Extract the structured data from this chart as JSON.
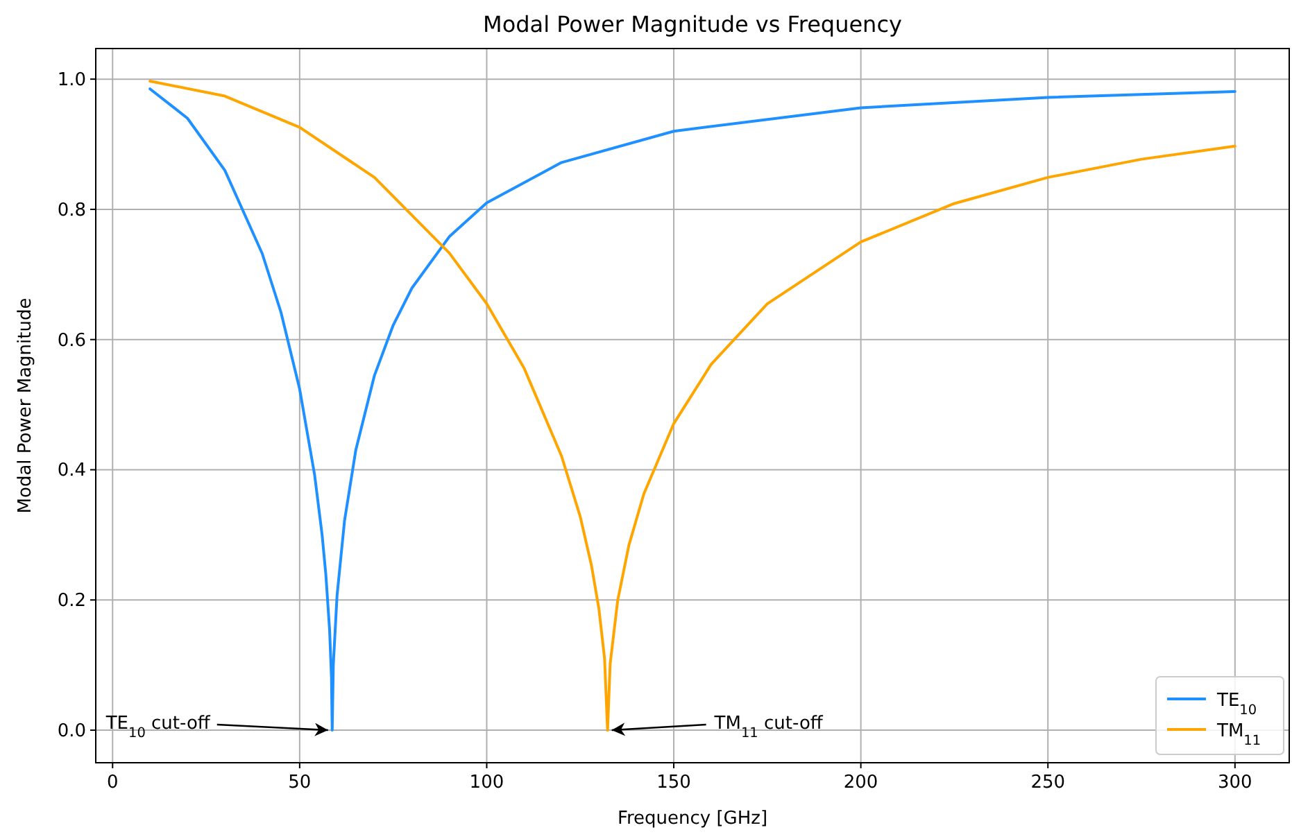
{
  "chart_data": {
    "type": "line",
    "title": "Modal Power Magnitude vs Frequency",
    "xlabel": "Frequency [GHz]",
    "ylabel": "Modal Power Magnitude",
    "xlim": [
      -4.5,
      314.5
    ],
    "ylim": [
      -0.05,
      1.047
    ],
    "xticks": [
      0,
      50,
      100,
      150,
      200,
      250,
      300
    ],
    "yticks": [
      {
        "value": 0,
        "label": "0.0"
      },
      {
        "value": 0.2,
        "label": "0.2"
      },
      {
        "value": 0.4,
        "label": "0.4"
      },
      {
        "value": 0.6,
        "label": "0.6"
      },
      {
        "value": 0.8,
        "label": "0.8"
      },
      {
        "value": 1,
        "label": "1.0"
      }
    ],
    "grid": true,
    "legend": "bottom right",
    "line_style": "solid",
    "marker": "none",
    "series": [
      {
        "name": "TE$_{10}$",
        "color": "#1e90ff",
        "x": [
          10,
          20,
          30,
          40,
          45,
          50,
          54,
          56,
          57,
          58,
          58.5,
          58.7,
          59,
          60,
          62,
          65,
          70,
          75,
          80,
          90,
          100,
          120,
          150,
          200,
          250,
          300
        ],
        "values": [
          0.985,
          0.94,
          0.86,
          0.732,
          0.642,
          0.524,
          0.392,
          0.3,
          0.239,
          0.154,
          0.082,
          0,
          0.101,
          0.207,
          0.322,
          0.43,
          0.545,
          0.622,
          0.679,
          0.758,
          0.81,
          0.872,
          0.92,
          0.956,
          0.972,
          0.981
        ]
      },
      {
        "name": "TM$_{11}$",
        "color": "#ffa500",
        "x": [
          10,
          30,
          50,
          70,
          90,
          100,
          110,
          120,
          125,
          128,
          130,
          131.5,
          132.3,
          133,
          135,
          138,
          142,
          150,
          160,
          175,
          200,
          225,
          250,
          275,
          300
        ],
        "values": [
          0.997,
          0.974,
          0.926,
          0.849,
          0.733,
          0.655,
          0.556,
          0.421,
          0.328,
          0.253,
          0.186,
          0.11,
          0,
          0.102,
          0.199,
          0.284,
          0.363,
          0.471,
          0.562,
          0.655,
          0.75,
          0.809,
          0.849,
          0.877,
          0.897
        ]
      }
    ],
    "annotations": [
      {
        "text": "TE$_{10}$ cut-off",
        "x": 58.7,
        "y": 0
      },
      {
        "text": "TM$_{11}$ cut-off",
        "x": 132.3,
        "y": 0
      }
    ]
  }
}
